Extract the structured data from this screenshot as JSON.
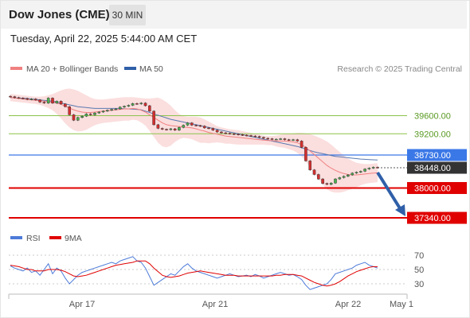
{
  "header": {
    "title": "Dow Jones (CME)",
    "timeframe": "30 MIN"
  },
  "timestamp": "Tuesday, April 22, 2025 5:44:00 AM CET",
  "legend": {
    "ma20_label": "MA 20 + Bollinger Bands",
    "ma50_label": "MA 50",
    "credit": "Research © 2025 Trading Central"
  },
  "colors": {
    "ma20": "#f08080",
    "ma50": "#5a79b0",
    "band": "#f9d3d3",
    "up": "#4caf50",
    "down": "#d32f2f",
    "support": "#e00000",
    "resistance": "#8bc34a",
    "pivot": "#3b78e7",
    "arrow": "#2f5fa8",
    "rsi": "#4d7bd9",
    "rsi_ma": "#e00000"
  },
  "chart_data": [
    {
      "type": "line",
      "name": "price",
      "ylim": [
        37200,
        40260
      ],
      "x_ticks": [
        "Apr 17",
        "Apr 21",
        "Apr 22",
        "May 1"
      ],
      "levels": [
        {
          "value": 39600,
          "label": "39600.00",
          "kind": "resistance"
        },
        {
          "value": 39200,
          "label": "39200.00",
          "kind": "resistance"
        },
        {
          "value": 38730,
          "label": "38730.00",
          "kind": "pivot"
        },
        {
          "value": 38448,
          "label": "38448.00",
          "kind": "last"
        },
        {
          "value": 38000,
          "label": "38000.00",
          "kind": "support"
        },
        {
          "value": 37340,
          "label": "37340.00",
          "kind": "support"
        }
      ],
      "close": [
        40020,
        40000,
        39990,
        39980,
        39960,
        39970,
        39950,
        39900,
        39880,
        39990,
        39880,
        39920,
        39860,
        39800,
        39620,
        39500,
        39560,
        39590,
        39640,
        39620,
        39660,
        39680,
        39700,
        39720,
        39740,
        39750,
        39790,
        39810,
        39830,
        39870,
        39860,
        39880,
        39820,
        39700,
        39400,
        39320,
        39300,
        39290,
        39310,
        39280,
        39340,
        39390,
        39440,
        39390,
        39380,
        39370,
        39330,
        39320,
        39280,
        39240,
        39220,
        39210,
        39200,
        39190,
        39180,
        39170,
        39160,
        39150,
        39140,
        39120,
        39100,
        39090,
        39080,
        39080,
        39090,
        39070,
        39060,
        39070,
        39040,
        38900,
        38600,
        38400,
        38300,
        38200,
        38100,
        38080,
        38110,
        38200,
        38230,
        38260,
        38290,
        38330,
        38350,
        38370,
        38420,
        38440,
        38460,
        38448
      ],
      "ma20": [
        40000,
        39990,
        39980,
        39970,
        39960,
        39950,
        39940,
        39930,
        39920,
        39910,
        39900,
        39880,
        39850,
        39810,
        39770,
        39730,
        39700,
        39680,
        39670,
        39670,
        39680,
        39690,
        39700,
        39710,
        39720,
        39730,
        39740,
        39750,
        39750,
        39760,
        39750,
        39720,
        39680,
        39620,
        39560,
        39500,
        39440,
        39400,
        39380,
        39370,
        39360,
        39350,
        39340,
        39330,
        39310,
        39280,
        39260,
        39230,
        39210,
        39190,
        39170,
        39150,
        39140,
        39130,
        39120,
        39110,
        39100,
        39090,
        39080,
        39070,
        39060,
        39050,
        39050,
        39040,
        39040,
        39040,
        39030,
        39020,
        39000,
        38960,
        38900,
        38820,
        38740,
        38660,
        38580,
        38500,
        38440,
        38390,
        38350,
        38320,
        38300,
        38290,
        38290,
        38300,
        38310,
        38320,
        38330,
        38340
      ],
      "ma50": [
        40000,
        39995,
        39990,
        39985,
        39980,
        39970,
        39960,
        39950,
        39940,
        39930,
        39920,
        39900,
        39880,
        39860,
        39840,
        39820,
        39800,
        39790,
        39780,
        39770,
        39760,
        39760,
        39760,
        39760,
        39760,
        39760,
        39760,
        39755,
        39750,
        39745,
        39740,
        39730,
        39700,
        39670,
        39640,
        39610,
        39580,
        39550,
        39520,
        39500,
        39480,
        39460,
        39440,
        39420,
        39400,
        39380,
        39360,
        39340,
        39320,
        39300,
        39280,
        39260,
        39240,
        39220,
        39200,
        39180,
        39160,
        39140,
        39120,
        39100,
        39080,
        39060,
        39040,
        39020,
        39000,
        38980,
        38960,
        38940,
        38920,
        38890,
        38860,
        38830,
        38800,
        38780,
        38760,
        38740,
        38720,
        38700,
        38690,
        38680,
        38670,
        38660,
        38650,
        38640,
        38635,
        38630,
        38625,
        38620
      ],
      "band_upper": [
        40080,
        40070,
        40060,
        40050,
        40040,
        40030,
        40020,
        40020,
        40030,
        40050,
        40080,
        40120,
        40160,
        40190,
        40200,
        40180,
        40150,
        40100,
        40050,
        40000,
        39970,
        39960,
        39960,
        39970,
        39980,
        39990,
        40000,
        40010,
        40010,
        40010,
        40000,
        39990,
        39980,
        39980,
        39990,
        40000,
        39960,
        39900,
        39820,
        39720,
        39640,
        39590,
        39580,
        39580,
        39580,
        39560,
        39520,
        39470,
        39420,
        39370,
        39340,
        39320,
        39300,
        39290,
        39280,
        39260,
        39240,
        39220,
        39200,
        39180,
        39160,
        39150,
        39150,
        39160,
        39180,
        39190,
        39200,
        39210,
        39220,
        39220,
        39210,
        39190,
        39160,
        39120,
        39080,
        39030,
        38960,
        38880,
        38800,
        38720,
        38650,
        38600,
        38560,
        38540,
        38530,
        38530,
        38540,
        38550
      ],
      "band_lower": [
        39920,
        39910,
        39900,
        39890,
        39880,
        39870,
        39860,
        39840,
        39810,
        39770,
        39720,
        39640,
        39540,
        39430,
        39340,
        39280,
        39250,
        39260,
        39290,
        39340,
        39390,
        39420,
        39440,
        39450,
        39460,
        39470,
        39480,
        39490,
        39490,
        39510,
        39500,
        39450,
        39380,
        39260,
        39130,
        39000,
        38920,
        38900,
        38940,
        39020,
        39080,
        39110,
        39100,
        39080,
        39040,
        39000,
        39000,
        38990,
        39000,
        39010,
        39000,
        38980,
        38980,
        38970,
        38960,
        38960,
        38960,
        38960,
        38960,
        38960,
        38960,
        38950,
        38950,
        38920,
        38900,
        38890,
        38860,
        38830,
        38780,
        38700,
        38590,
        38450,
        38320,
        38200,
        38080,
        37970,
        37920,
        37900,
        37900,
        37920,
        37950,
        37980,
        38020,
        38060,
        38090,
        38110,
        38120,
        38130
      ]
    },
    {
      "type": "line",
      "name": "RSI",
      "legend": [
        "RSI",
        "9MA"
      ],
      "ylim": [
        20,
        80
      ],
      "y_ticks": [
        70,
        50,
        30
      ],
      "rsi": [
        55,
        52,
        50,
        48,
        52,
        46,
        48,
        42,
        50,
        58,
        44,
        52,
        48,
        38,
        30,
        36,
        42,
        46,
        48,
        50,
        52,
        54,
        56,
        58,
        60,
        58,
        62,
        64,
        66,
        68,
        62,
        60,
        52,
        40,
        28,
        32,
        36,
        40,
        44,
        42,
        48,
        54,
        58,
        52,
        48,
        46,
        44,
        42,
        40,
        38,
        40,
        42,
        44,
        42,
        40,
        41,
        42,
        40,
        43,
        41,
        38,
        40,
        42,
        44,
        46,
        44,
        42,
        43,
        40,
        36,
        28,
        22,
        24,
        26,
        28,
        30,
        36,
        44,
        46,
        48,
        50,
        52,
        56,
        58,
        60,
        56,
        54,
        52
      ],
      "ma9": [
        56,
        55,
        54,
        52,
        50,
        50,
        48,
        48,
        48,
        50,
        50,
        50,
        49,
        47,
        44,
        41,
        40,
        41,
        42,
        44,
        46,
        48,
        50,
        52,
        54,
        56,
        57,
        58,
        59,
        60,
        62,
        62,
        62,
        58,
        52,
        47,
        42,
        40,
        39,
        40,
        41,
        43,
        45,
        46,
        47,
        48,
        47,
        46,
        45,
        44,
        43,
        42,
        42,
        42,
        41,
        41,
        41,
        41,
        41,
        41,
        41,
        41,
        41,
        42,
        42,
        43,
        43,
        43,
        42,
        41,
        38,
        35,
        32,
        30,
        28,
        27,
        28,
        30,
        33,
        37,
        41,
        44,
        47,
        49,
        51,
        53,
        54,
        54
      ]
    }
  ]
}
